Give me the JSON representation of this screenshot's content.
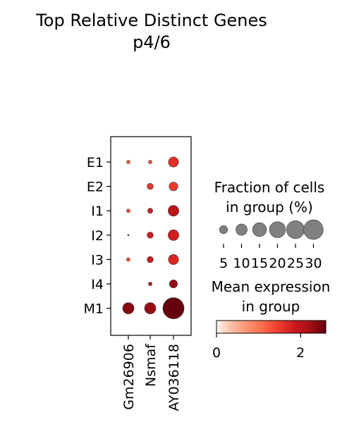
{
  "chart_data": {
    "type": "dotplot",
    "title": "Top Relative Distinct Genes",
    "subtitle": "p4/6",
    "groups": [
      "E1",
      "E2",
      "I1",
      "I2",
      "I3",
      "I4",
      "M1"
    ],
    "genes": [
      "Gm26906",
      "Nsmaf",
      "AY036118"
    ],
    "fraction": [
      [
        1,
        1,
        8
      ],
      [
        0,
        3,
        6
      ],
      [
        1,
        2,
        9
      ],
      [
        0.2,
        3,
        9
      ],
      [
        1,
        3,
        8
      ],
      [
        0,
        1,
        5
      ],
      [
        10,
        10,
        35
      ]
    ],
    "mean_expression": [
      [
        1.2,
        1.3,
        1.6
      ],
      [
        0,
        1.5,
        1.5
      ],
      [
        1.3,
        1.8,
        2.0
      ],
      [
        1.2,
        1.8,
        1.8
      ],
      [
        1.3,
        1.8,
        1.7
      ],
      [
        0,
        2.0,
        2.3
      ],
      [
        2.4,
        2.3,
        2.7
      ]
    ],
    "size_legend": {
      "title_line1": "Fraction of cells",
      "title_line2": "in group (%)",
      "values": [
        5,
        10,
        15,
        20,
        25,
        30
      ],
      "labels": [
        "5",
        "10",
        "15",
        "20",
        "25",
        "30"
      ]
    },
    "color_legend": {
      "title_line1": "Mean expression",
      "title_line2": "in group",
      "range": [
        0,
        2.6
      ],
      "ticks": [
        0,
        2
      ],
      "tick_labels": [
        "0",
        "2"
      ],
      "colormap": "Reds",
      "colors": [
        "#fff5f0",
        "#fcbba1",
        "#fc9272",
        "#fb6a4a",
        "#ef3b2c",
        "#cb181d",
        "#a50f15",
        "#67000d"
      ]
    },
    "marker_edge_color": "#333333"
  }
}
